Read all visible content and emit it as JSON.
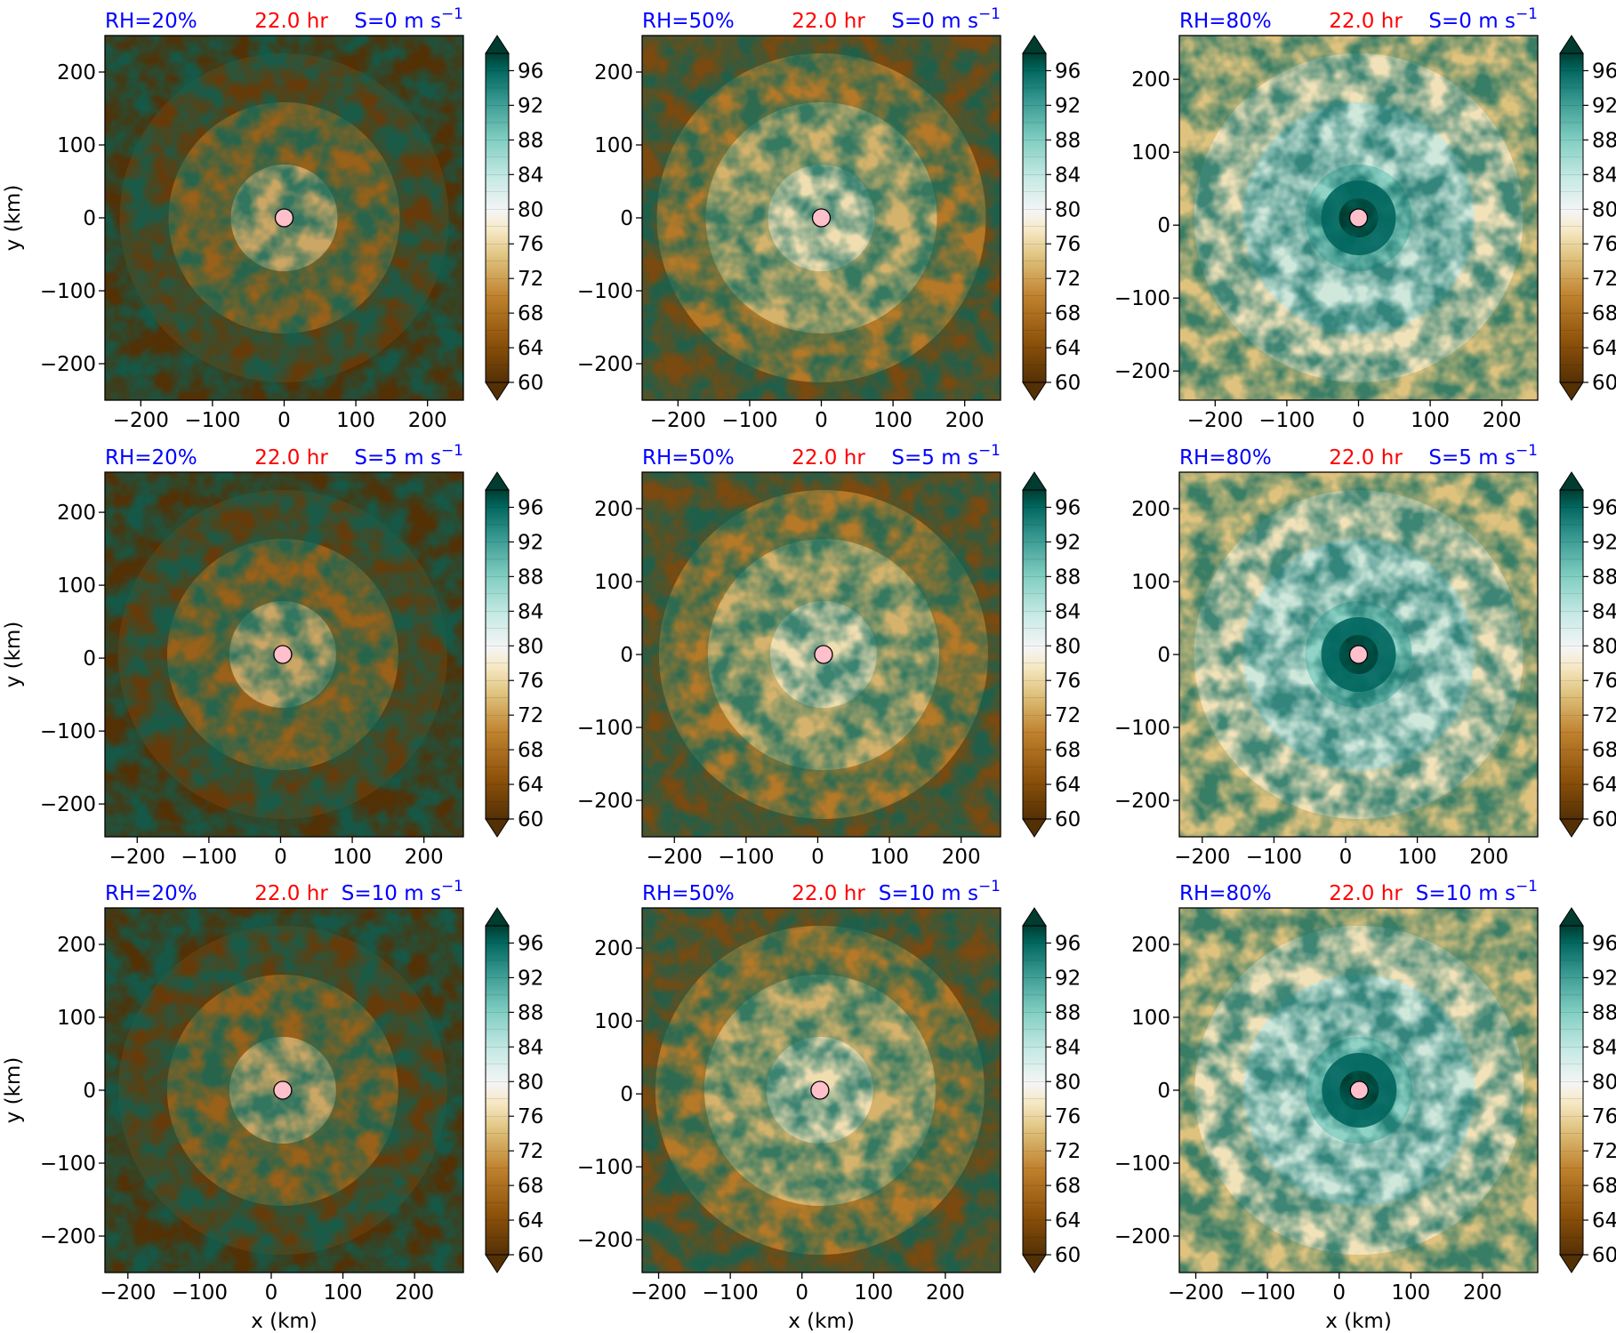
{
  "figure": {
    "colors": {
      "rh_label": "#0000ff",
      "time_label": "#ff0000",
      "shear_label": "#0000ff",
      "center_marker": "#ffc0cb",
      "low": "#543005",
      "mid": "#f5f5f5",
      "high": "#003c30"
    },
    "colorbar": {
      "tick_labels": [
        "96",
        "92",
        "88",
        "84",
        "80",
        "76",
        "72",
        "68",
        "64",
        "60"
      ],
      "levels": [
        60,
        62,
        64,
        66,
        68,
        70,
        72,
        74,
        76,
        78,
        80,
        82,
        84,
        86,
        88,
        90,
        92,
        94,
        96,
        98
      ],
      "colormap": "BrBG",
      "extend": "both"
    }
  },
  "chart_data": [
    {
      "type": "heatmap",
      "rh_label": "RH=20%",
      "time_label": "22.0 hr",
      "shear_label": "S=0 m s",
      "shear_exp": "−1",
      "ylabel": "y (km)",
      "xlabel": "",
      "xlim": [
        -250,
        250
      ],
      "ylim": [
        -250,
        250
      ],
      "xticks": [
        "−200",
        "−100",
        "0",
        "100",
        "200"
      ],
      "yticks": [
        "200",
        "100",
        "0",
        "−100",
        "−200"
      ],
      "center": [
        0,
        0
      ],
      "field_level": 20
    },
    {
      "type": "heatmap",
      "rh_label": "RH=50%",
      "time_label": "22.0 hr",
      "shear_label": "S=0 m s",
      "shear_exp": "−1",
      "ylabel": "",
      "xlabel": "",
      "xlim": [
        -250,
        250
      ],
      "ylim": [
        -250,
        250
      ],
      "xticks": [
        "−200",
        "−100",
        "0",
        "100",
        "200"
      ],
      "yticks": [
        "200",
        "100",
        "0",
        "−100",
        "−200"
      ],
      "center": [
        0,
        0
      ],
      "field_level": 50
    },
    {
      "type": "heatmap",
      "rh_label": "RH=80%",
      "time_label": "22.0 hr",
      "shear_label": "S=0 m s",
      "shear_exp": "−1",
      "ylabel": "",
      "xlabel": "",
      "xlim": [
        -250,
        250
      ],
      "ylim": [
        -240,
        260
      ],
      "xticks": [
        "−200",
        "−100",
        "0",
        "100",
        "200"
      ],
      "yticks": [
        "200",
        "100",
        "0",
        "−100",
        "−200"
      ],
      "center": [
        0,
        10
      ],
      "field_level": 80
    },
    {
      "type": "heatmap",
      "rh_label": "RH=20%",
      "time_label": "22.0 hr",
      "shear_label": "S=5 m s",
      "shear_exp": "−1",
      "ylabel": "y (km)",
      "xlabel": "",
      "xlim": [
        -245,
        255
      ],
      "ylim": [
        -245,
        255
      ],
      "xticks": [
        "−200",
        "−100",
        "0",
        "100",
        "200"
      ],
      "yticks": [
        "200",
        "100",
        "0",
        "−100",
        "−200"
      ],
      "center": [
        3,
        5
      ],
      "field_level": 20
    },
    {
      "type": "heatmap",
      "rh_label": "RH=50%",
      "time_label": "22.0 hr",
      "shear_label": "S=5 m s",
      "shear_exp": "−1",
      "ylabel": "",
      "xlabel": "",
      "xlim": [
        -245,
        255
      ],
      "ylim": [
        -250,
        250
      ],
      "xticks": [
        "−200",
        "−100",
        "0",
        "100",
        "200"
      ],
      "yticks": [
        "200",
        "100",
        "0",
        "−100",
        "−200"
      ],
      "center": [
        8,
        0
      ],
      "field_level": 50
    },
    {
      "type": "heatmap",
      "rh_label": "RH=80%",
      "time_label": "22.0 hr",
      "shear_label": "S=5 m s",
      "shear_exp": "−1",
      "ylabel": "",
      "xlabel": "",
      "xlim": [
        -232,
        268
      ],
      "ylim": [
        -250,
        250
      ],
      "xticks": [
        "−200",
        "−100",
        "0",
        "100",
        "200"
      ],
      "yticks": [
        "200",
        "100",
        "0",
        "−100",
        "−200"
      ],
      "center": [
        18,
        0
      ],
      "field_level": 80
    },
    {
      "type": "heatmap",
      "rh_label": "RH=20%",
      "time_label": "22.0 hr",
      "shear_label": "S=10 m s",
      "shear_exp": "−1",
      "ylabel": "y (km)",
      "xlabel": "x (km)",
      "xlim": [
        -232,
        268
      ],
      "ylim": [
        -250,
        250
      ],
      "xticks": [
        "−200",
        "−100",
        "0",
        "100",
        "200"
      ],
      "yticks": [
        "200",
        "100",
        "0",
        "−100",
        "−200"
      ],
      "center": [
        16,
        0
      ],
      "field_level": 20
    },
    {
      "type": "heatmap",
      "rh_label": "RH=50%",
      "time_label": "22.0 hr",
      "shear_label": "S=10 m s",
      "shear_exp": "−1",
      "ylabel": "",
      "xlabel": "x (km)",
      "xlim": [
        -223,
        277
      ],
      "ylim": [
        -245,
        255
      ],
      "xticks": [
        "−200",
        "−100",
        "0",
        "100",
        "200"
      ],
      "yticks": [
        "200",
        "100",
        "0",
        "−100",
        "−200"
      ],
      "center": [
        25,
        5
      ],
      "field_level": 50
    },
    {
      "type": "heatmap",
      "rh_label": "RH=80%",
      "time_label": "22.0 hr",
      "shear_label": "S=10 m s",
      "shear_exp": "−1",
      "ylabel": "",
      "xlabel": "x (km)",
      "xlim": [
        -223,
        277
      ],
      "ylim": [
        -250,
        250
      ],
      "xticks": [
        "−200",
        "−100",
        "0",
        "100",
        "200"
      ],
      "yticks": [
        "200",
        "100",
        "0",
        "−100",
        "−200"
      ],
      "center": [
        28,
        0
      ],
      "field_level": 80
    }
  ]
}
